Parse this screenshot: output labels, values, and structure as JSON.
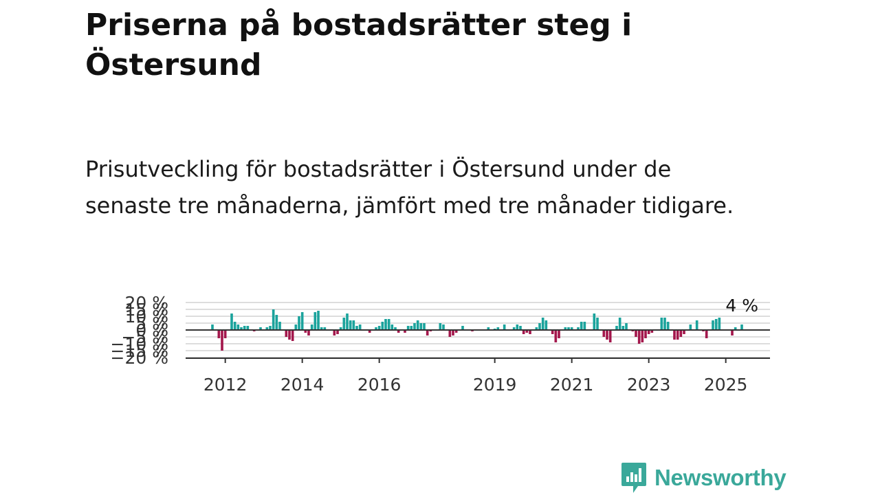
{
  "title": "Priserna på bostadsrätter steg i Östersund",
  "subtitle": "Prisutveckling för bostadsrätter i Östersund under de senaste tre månaderna, jämfört med tre månader tidigare.",
  "brand": {
    "name": "Newsworthy",
    "color": "#3aa89a"
  },
  "colors": {
    "positive": "#1ba39c",
    "negative": "#a3174c",
    "grid": "#dddddd",
    "zero_line": "#333333"
  },
  "chart_data": {
    "type": "bar",
    "ylim": [
      -20,
      20
    ],
    "y_ticks": [
      {
        "value": 20,
        "label": "20 %"
      },
      {
        "value": 15,
        "label": "15 %"
      },
      {
        "value": 10,
        "label": "10 %"
      },
      {
        "value": 5,
        "label": "5 %"
      },
      {
        "value": 0,
        "label": "0 %"
      },
      {
        "value": -5,
        "label": "−5 %"
      },
      {
        "value": -10,
        "label": "−10 %"
      },
      {
        "value": -15,
        "label": "−15 %"
      },
      {
        "value": -20,
        "label": "−20 %"
      }
    ],
    "x_ticks": [
      "2012",
      "2014",
      "2016",
      "2019",
      "2021",
      "2023",
      "2025"
    ],
    "x_start": "2011-09",
    "last_label": "4 %",
    "grid": true,
    "values": [
      4,
      0,
      -6,
      -15,
      -6,
      0,
      12,
      6,
      4,
      2,
      3,
      3,
      0,
      -1,
      0,
      2,
      0,
      2,
      3,
      15,
      11,
      6,
      0,
      -5,
      -7,
      -8,
      4,
      10,
      13,
      -2,
      -4,
      4,
      13,
      14,
      2,
      2,
      0,
      0,
      -4,
      -3,
      2,
      9,
      12,
      7,
      7,
      3,
      4,
      0,
      0,
      -2,
      0,
      2,
      3,
      6,
      8,
      8,
      4,
      2,
      -2,
      0,
      -2,
      3,
      3,
      5,
      7,
      5,
      5,
      -4,
      -1,
      0,
      0,
      5,
      4,
      0,
      -5,
      -4,
      -2,
      0,
      3,
      0,
      0,
      -1,
      0,
      0,
      0,
      0,
      2,
      0,
      1,
      2,
      0,
      4,
      0,
      0,
      2,
      4,
      3,
      -3,
      -2,
      -3,
      0,
      2,
      5,
      9,
      7,
      0,
      -3,
      -9,
      -6,
      0,
      2,
      2,
      2,
      0,
      2,
      6,
      6,
      0,
      0,
      12,
      9,
      0,
      -5,
      -7,
      -9,
      0,
      3,
      9,
      3,
      5,
      0,
      -1,
      -5,
      -10,
      -9,
      -6,
      -3,
      -2,
      0,
      0,
      9,
      9,
      6,
      0,
      -7,
      -7,
      -5,
      -3,
      0,
      4,
      0,
      7,
      0,
      -1,
      -6,
      0,
      7,
      8,
      9,
      0,
      0,
      0,
      -4,
      2,
      0,
      4
    ]
  }
}
